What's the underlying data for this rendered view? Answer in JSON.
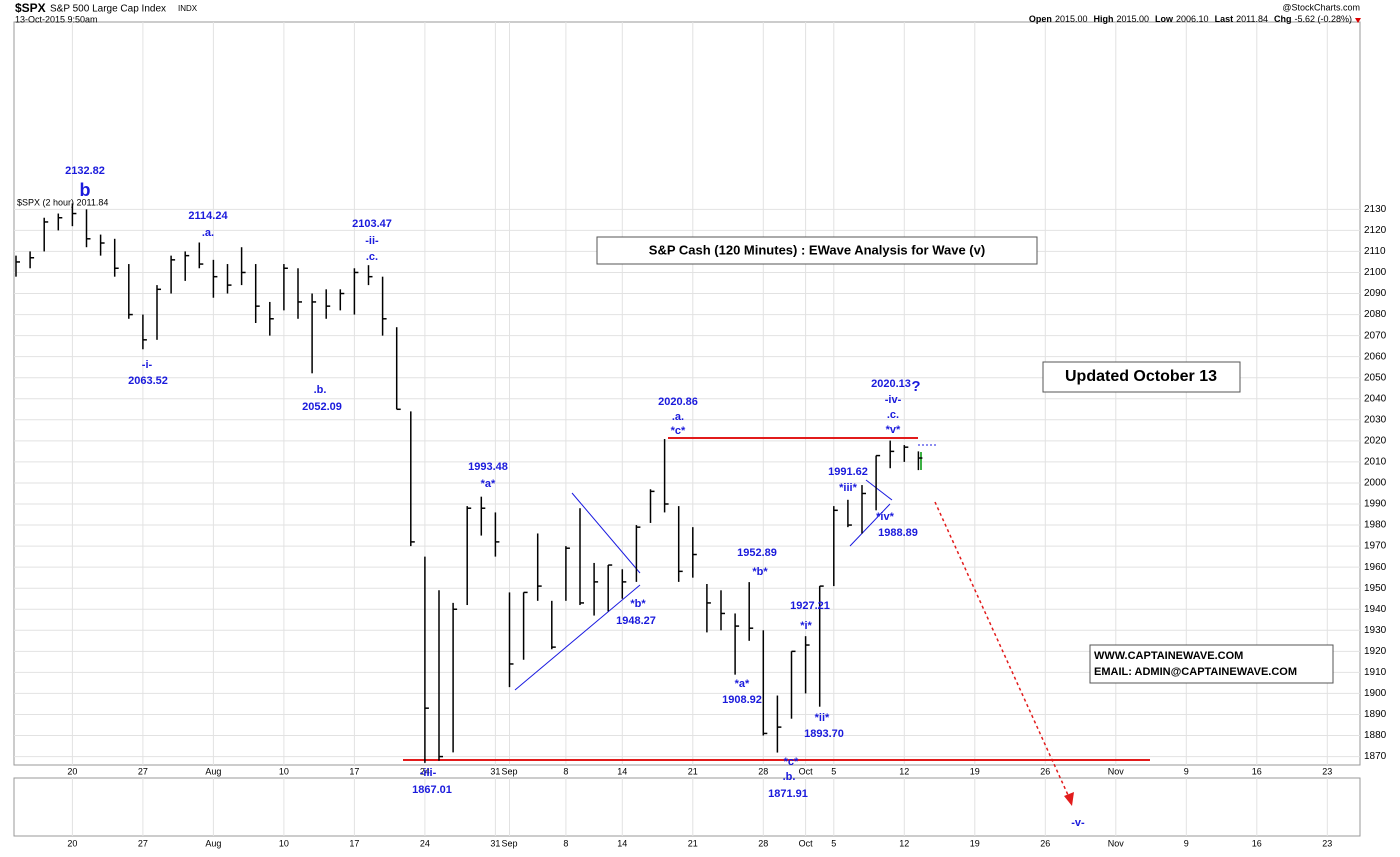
{
  "header": {
    "symbol": "$SPX",
    "name": "S&P 500 Large Cap Index",
    "exchange": "INDX",
    "datetime": "13-Oct-2015 9:50am",
    "source": "@StockCharts.com",
    "quote": [
      {
        "label": "Open",
        "value": "2015.00"
      },
      {
        "label": "High",
        "value": "2015.00"
      },
      {
        "label": "Low",
        "value": "2006.10"
      },
      {
        "label": "Last",
        "value": "2011.84"
      },
      {
        "label": "Chg",
        "value": "-5.62 (-0.28%)"
      }
    ]
  },
  "chart_data": {
    "type": "ohlc",
    "title": "S&P Cash (120 Minutes) : EWave Analysis for Wave (v)",
    "legend": "$SPX (2 hour) 2011.84",
    "note": "Updated October 13",
    "contact": [
      "WWW.CAPTAINEWAVE.COM",
      "EMAIL: ADMIN@CAPTAINEWAVE.COM"
    ],
    "color": "#000000",
    "high": [
      2108,
      2110,
      2126,
      2128,
      2132.82,
      2130,
      2118,
      2116,
      2104,
      2080,
      2094,
      2108,
      2110,
      2114.24,
      2106,
      2104,
      2112,
      2104,
      2086,
      2104,
      2102,
      2090,
      2092,
      2092,
      2102,
      2103.47,
      2098,
      2074,
      2034,
      1965,
      1949,
      1943,
      1989,
      1993.48,
      1986,
      1948,
      1948,
      1976,
      1944,
      1970,
      1988,
      1962,
      1961,
      1959,
      1980,
      1997,
      2020.86,
      1989,
      1979,
      1952,
      1949,
      1938,
      1952.89,
      1930,
      1899,
      1920,
      1927.21,
      1951,
      1989,
      1992,
      1999,
      2013,
      2020.13,
      2018,
      2015
    ],
    "low": [
      2098,
      2102,
      2110,
      2120,
      2122,
      2112,
      2108,
      2098,
      2078,
      2063.52,
      2068,
      2090,
      2096,
      2102,
      2088,
      2090,
      2094,
      2076,
      2070,
      2082,
      2078,
      2052.09,
      2078,
      2082,
      2080,
      2094,
      2070,
      2035,
      1970,
      1867.01,
      1868,
      1872,
      1942,
      1975,
      1965,
      1903,
      1916,
      1944,
      1921,
      1944,
      1942,
      1937,
      1939,
      1945,
      1953,
      1981,
      1986,
      1953,
      1955,
      1929,
      1930,
      1908.92,
      1925,
      1880,
      1871.91,
      1888,
      1900,
      1893.7,
      1951,
      1979,
      1976,
      1987,
      2007,
      2010,
      2006.1
    ],
    "close": [
      2105,
      2107,
      2124,
      2126,
      2128,
      2116,
      2114,
      2102,
      2080,
      2068,
      2092,
      2106,
      2108,
      2104,
      2098,
      2094,
      2100,
      2084,
      2078,
      2102,
      2086,
      2086,
      2084,
      2090,
      2100,
      2098,
      2078,
      2035,
      1972,
      1893,
      1870,
      1940,
      1988,
      1988,
      1972,
      1914,
      1948,
      1951,
      1922,
      1969,
      1943,
      1953,
      1961,
      1953,
      1979,
      1996,
      1990,
      1958,
      1966,
      1943,
      1938,
      1932,
      1931,
      1881,
      1884,
      1920,
      1923,
      1951,
      1987,
      1980,
      1995,
      2013,
      2015,
      2017,
      2011.84
    ],
    "xlim": [
      0,
      95
    ],
    "ylim": [
      1866,
      2219
    ],
    "xticks": [
      {
        "value": 4,
        "label": "20"
      },
      {
        "value": 9,
        "label": "27"
      },
      {
        "value": 14,
        "label": "Aug"
      },
      {
        "value": 19,
        "label": "10"
      },
      {
        "value": 24,
        "label": "17"
      },
      {
        "value": 29,
        "label": "24"
      },
      {
        "value": 34,
        "label": "31"
      },
      {
        "value": 35,
        "label": "Sep"
      },
      {
        "value": 39,
        "label": "8"
      },
      {
        "value": 43,
        "label": "14"
      },
      {
        "value": 48,
        "label": "21"
      },
      {
        "value": 53,
        "label": "28"
      },
      {
        "value": 56,
        "label": "Oct"
      },
      {
        "value": 58,
        "label": "5"
      },
      {
        "value": 63,
        "label": "12"
      },
      {
        "value": 68,
        "label": "19"
      },
      {
        "value": 73,
        "label": "26"
      },
      {
        "value": 78,
        "label": "Nov"
      },
      {
        "value": 83,
        "label": "9"
      },
      {
        "value": 88,
        "label": "16"
      },
      {
        "value": 93,
        "label": "23"
      }
    ],
    "yticks": [
      1870,
      1880,
      1890,
      1900,
      1910,
      1920,
      1930,
      1940,
      1950,
      1960,
      1970,
      1980,
      1990,
      2000,
      2010,
      2020,
      2030,
      2040,
      2050,
      2060,
      2070,
      2080,
      2090,
      2100,
      2110,
      2120,
      2130
    ],
    "grid": true,
    "annotations": [
      "2132.82",
      "b",
      "2114.24",
      ".a.",
      "-i-",
      "2063.52",
      ".b.",
      "2052.09",
      "2103.47",
      "-ii-",
      ".c.",
      "-iii-",
      "1867.01",
      "1993.48",
      "*a*",
      "*b*",
      "1948.27",
      "2020.86",
      ".a.",
      "*c*",
      "1952.89",
      "*b*",
      "*a*",
      "1908.92",
      "1927.21",
      "*i*",
      "*ii*",
      "1893.70",
      "*c*",
      ".b.",
      "1871.91",
      "1991.62",
      "*iii*",
      "*iv*",
      "1988.89",
      "2020.13",
      "?",
      "-iv-",
      ".c.",
      "*v*",
      "-v-"
    ]
  }
}
